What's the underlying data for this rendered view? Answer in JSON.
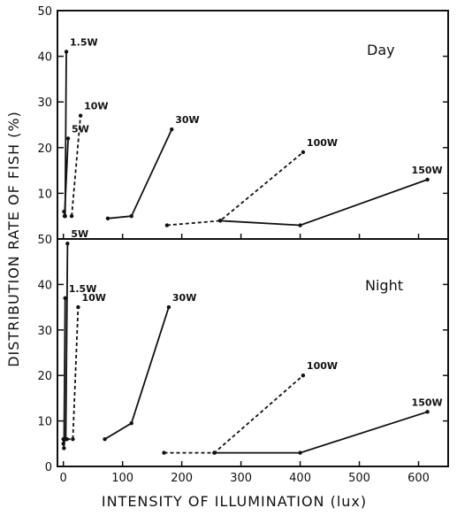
{
  "chart_data": [
    {
      "type": "line",
      "panel": "Day",
      "xlabel": "INTENSITY OF ILLUMINATION (lux)",
      "ylabel": "DISTRIBUTION RATE OF FISH (%)",
      "xlim": [
        -10,
        650
      ],
      "ylim": [
        0,
        50
      ],
      "x_ticks": [
        0,
        100,
        200,
        300,
        400,
        500,
        600
      ],
      "y_ticks": [
        0,
        10,
        20,
        30,
        40,
        50
      ],
      "grid": false,
      "series": [
        {
          "name": "1.5W",
          "style": "solid",
          "x": [
            1,
            3,
            5
          ],
          "y": [
            6,
            5,
            41
          ]
        },
        {
          "name": "5W",
          "style": "solid",
          "x": [
            2,
            8
          ],
          "y": [
            5,
            22
          ]
        },
        {
          "name": "10W",
          "style": "dashed",
          "x": [
            14,
            29
          ],
          "y": [
            5,
            27
          ]
        },
        {
          "name": "30W",
          "style": "solid",
          "x": [
            75,
            115,
            183
          ],
          "y": [
            4.5,
            5,
            24
          ]
        },
        {
          "name": "100W",
          "style": "dashed",
          "x": [
            175,
            265,
            405
          ],
          "y": [
            3,
            4,
            19
          ]
        },
        {
          "name": "150W",
          "style": "solid",
          "x": [
            265,
            400,
            615
          ],
          "y": [
            4,
            3,
            13
          ]
        }
      ]
    },
    {
      "type": "line",
      "panel": "Night",
      "xlabel": "INTENSITY OF ILLUMINATION (lux)",
      "ylabel": "DISTRIBUTION RATE OF FISH (%)",
      "xlim": [
        -10,
        650
      ],
      "ylim": [
        0,
        50
      ],
      "x_ticks": [
        0,
        100,
        200,
        300,
        400,
        500,
        600
      ],
      "y_ticks": [
        0,
        10,
        20,
        30,
        40,
        50
      ],
      "grid": false,
      "series": [
        {
          "name": "5W",
          "style": "solid",
          "x": [
            0,
            4,
            7
          ],
          "y": [
            5,
            6,
            49
          ]
        },
        {
          "name": "1.5W",
          "style": "solid",
          "x": [
            0,
            1,
            3
          ],
          "y": [
            6,
            4,
            37
          ]
        },
        {
          "name": "10W",
          "style": "dashed",
          "x": [
            6,
            16,
            25
          ],
          "y": [
            6,
            6,
            35
          ]
        },
        {
          "name": "30W",
          "style": "solid",
          "x": [
            70,
            115,
            178
          ],
          "y": [
            6,
            9.5,
            35
          ]
        },
        {
          "name": "100W",
          "style": "dashed",
          "x": [
            170,
            255,
            405
          ],
          "y": [
            3,
            3,
            20
          ]
        },
        {
          "name": "150W",
          "style": "solid",
          "x": [
            255,
            400,
            615
          ],
          "y": [
            3,
            3,
            12
          ]
        }
      ]
    }
  ],
  "labels": {
    "day": "Day",
    "night": "Night",
    "xlabel": "INTENSITY OF ILLUMINATION (lux)",
    "ylabel": "DISTRIBUTION RATE OF FISH (%)"
  }
}
